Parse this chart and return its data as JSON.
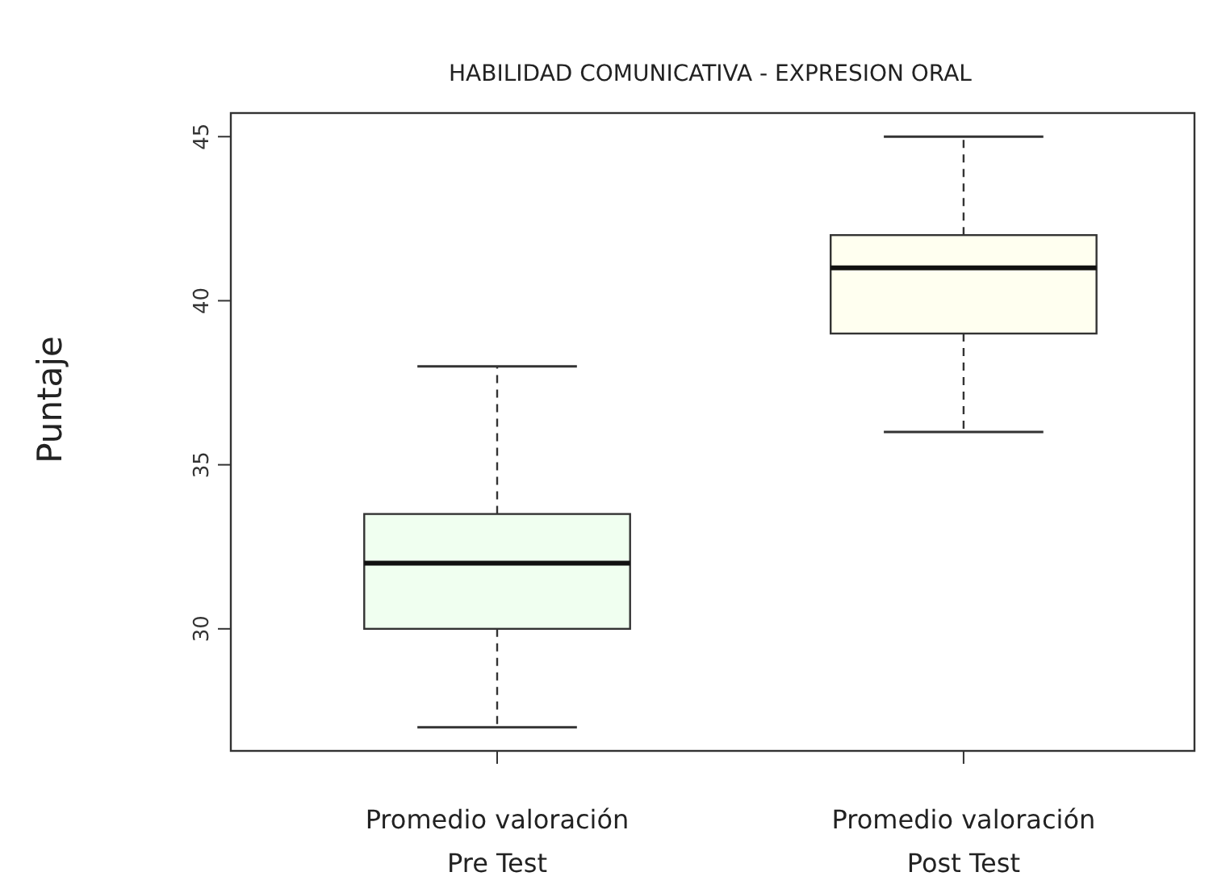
{
  "chart_data": {
    "type": "box",
    "title": "HABILIDAD COMUNICATIVA  - EXPRESION ORAL",
    "ylabel": "Puntaje",
    "categories": [
      "Promedio valoración\nPre Test",
      "Promedio valoración\nPost Test"
    ],
    "boxes": [
      {
        "low": 27,
        "q1": 30,
        "median": 32,
        "q3": 33.5,
        "high": 38
      },
      {
        "low": 36,
        "q1": 39,
        "median": 41,
        "q3": 42,
        "high": 45
      }
    ],
    "colors": [
      "#f0fff0",
      "#fffff0"
    ],
    "ylim": [
      26.28,
      45.72
    ],
    "yticks": [
      30,
      35,
      40,
      45
    ],
    "grid": false
  }
}
